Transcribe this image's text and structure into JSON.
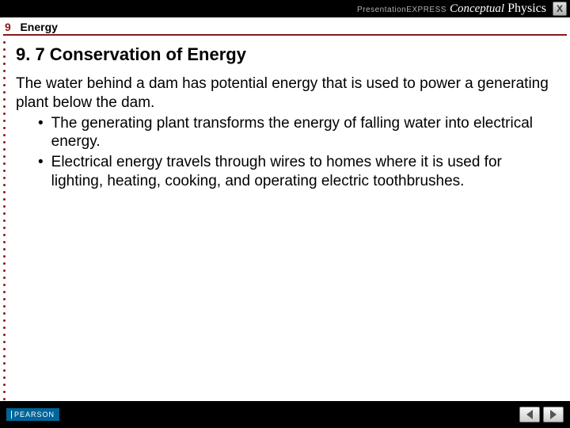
{
  "topbar": {
    "express_label": "PresentationEXPRESS",
    "title_italic": "Conceptual",
    "title_plain": "Physics",
    "close_label": "X"
  },
  "chapter": {
    "number": "9",
    "name": "Energy"
  },
  "content": {
    "heading": "9. 7 Conservation of Energy",
    "intro": "The water behind a dam has potential energy that is used to power a generating plant below the dam.",
    "bullets": [
      "The generating plant transforms the energy of falling water into electrical energy.",
      "Electrical energy travels through wires to homes where it is used for lighting, heating, cooking, and operating electric toothbrushes."
    ]
  },
  "footer": {
    "publisher": "PEARSON"
  },
  "colors": {
    "accent": "#8a1a1a",
    "topbar": "#000000",
    "footer": "#000000",
    "pearson": "#006699"
  }
}
